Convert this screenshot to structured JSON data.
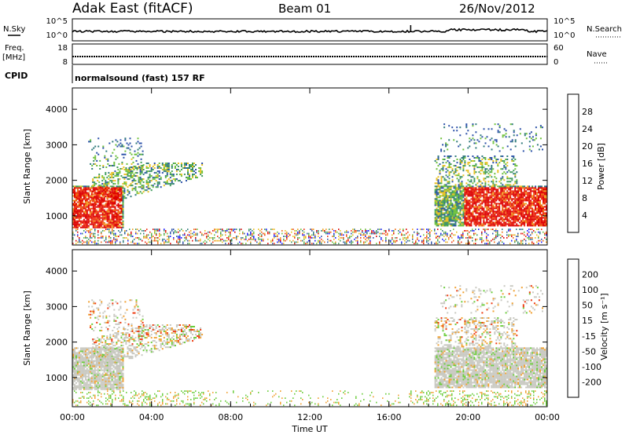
{
  "header": {
    "title": "Adak East (fitACF)",
    "beam": "Beam 01",
    "date": "26/Nov/2012"
  },
  "noise_panel": {
    "left_label": "N.Sky",
    "right_label": "N.Search",
    "left_ticks": [
      "10^5",
      "10^0"
    ],
    "right_ticks": [
      "10^5",
      "10^0"
    ]
  },
  "freq_panel": {
    "left_label_1": "Freq.",
    "left_label_2": "[MHz]",
    "right_label": "Nave",
    "left_ticks": [
      "18",
      "8"
    ],
    "right_ticks": [
      "60",
      "0"
    ]
  },
  "cpid": {
    "label": "CPID",
    "text": "normalsound (fast) 157 RF"
  },
  "chart_data": [
    {
      "type": "heatmap",
      "name": "power",
      "ylabel": "Slant Range [km]",
      "y_ticks": [
        "1000",
        "2000",
        "3000",
        "4000"
      ],
      "y_values": [
        1000,
        2000,
        3000,
        4000
      ],
      "ylim": [
        180,
        4600
      ],
      "colorbar": {
        "label": "Power [dB]",
        "ticks": [
          "4",
          "8",
          "12",
          "16",
          "20",
          "24",
          "28"
        ],
        "colors": [
          "#1a1aff",
          "#2a4fa8",
          "#2f7a7a",
          "#3f9a5a",
          "#6cc03a",
          "#e8c020",
          "#f0a020",
          "#f06a10",
          "#ee3010",
          "#dd0000"
        ]
      }
    },
    {
      "type": "heatmap",
      "name": "velocity",
      "ylabel": "Slant Range [km]",
      "y_ticks": [
        "1000",
        "2000",
        "3000",
        "4000"
      ],
      "y_values": [
        1000,
        2000,
        3000,
        4000
      ],
      "ylim": [
        180,
        4600
      ],
      "colorbar": {
        "label": "Velocity [m s⁻¹]",
        "ticks": [
          "200",
          "100",
          "50",
          "15",
          "-15",
          "-50",
          "-100",
          "-200"
        ],
        "colors": [
          "#2233aa",
          "#2a6aa0",
          "#2a8a5a",
          "#6acc3a",
          "#c8c8c0",
          "#c8c8c0",
          "#f0a030",
          "#f07010",
          "#ee3a10",
          "#dd0000"
        ]
      }
    }
  ],
  "x_axis": {
    "label": "Time UT",
    "ticks": [
      "00:00",
      "04:00",
      "08:00",
      "12:00",
      "16:00",
      "20:00",
      "00:00"
    ],
    "hours": [
      0,
      4,
      8,
      12,
      16,
      20,
      24
    ]
  }
}
